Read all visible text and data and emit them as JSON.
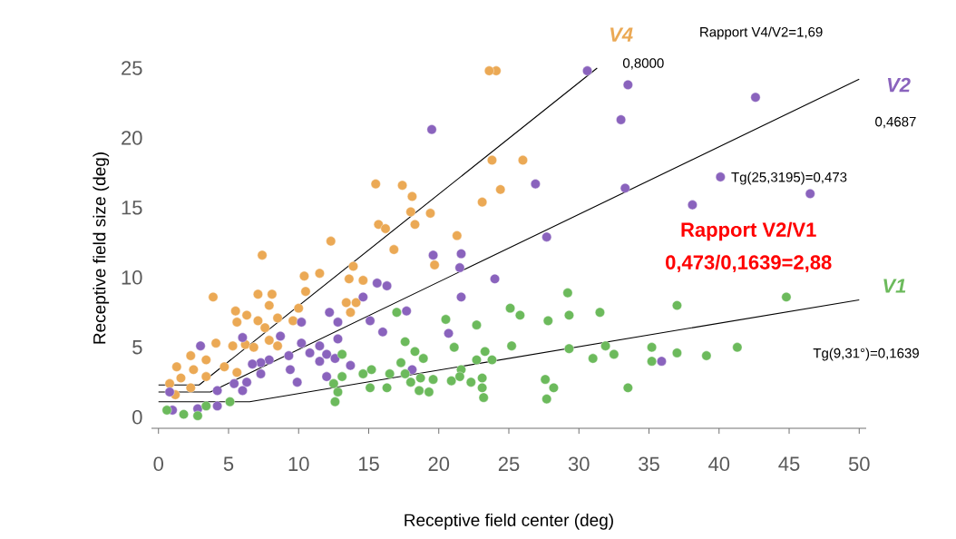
{
  "chart_data": {
    "type": "scatter",
    "xlabel": "Receptive field center (deg)",
    "ylabel": "Receptive field size (deg)",
    "xlim": [
      -0.5,
      50.5
    ],
    "ylim": [
      -0.8,
      25
    ],
    "xticks": [
      0,
      5,
      10,
      15,
      20,
      25,
      30,
      35,
      40,
      45,
      50
    ],
    "yticks": [
      0,
      5,
      10,
      15,
      20,
      25
    ],
    "series": [
      {
        "name": "V4",
        "color": "#eba955",
        "marker": "circle",
        "x": [
          15.5,
          17.4,
          18.1,
          18.0,
          15.7,
          16.2,
          18.3,
          12.3,
          16.8,
          7.4,
          13.9,
          10.4,
          11.5,
          13.6,
          14.6,
          7.1,
          8.1,
          3.9,
          10.5,
          13.4,
          14.1,
          7.9,
          5.5,
          6.3,
          5.6,
          7.1,
          8.5,
          9.6,
          10.0,
          13.7,
          7.6,
          4.1,
          5.3,
          6.2,
          6.8,
          8.5,
          7.9,
          2.3,
          3.4,
          1.3,
          2.5,
          4.7,
          5.6,
          1.6,
          3.4,
          0.8,
          2.3,
          1.2,
          24.1,
          23.6,
          23.8,
          26.0,
          24.4,
          23.1,
          19.4,
          21.3,
          19.7
        ],
        "values": [
          16.7,
          16.6,
          15.8,
          14.7,
          13.8,
          13.5,
          13.8,
          12.6,
          12.0,
          11.6,
          10.8,
          10.1,
          10.3,
          9.9,
          9.8,
          8.8,
          8.8,
          8.6,
          9.0,
          8.2,
          8.2,
          8.0,
          7.6,
          7.3,
          6.8,
          6.9,
          7.1,
          6.9,
          7.8,
          7.5,
          6.4,
          5.3,
          5.1,
          5.2,
          5.0,
          5.1,
          5.5,
          4.4,
          4.1,
          3.6,
          3.4,
          3.6,
          3.2,
          2.8,
          2.9,
          2.4,
          2.1,
          1.6,
          24.8,
          24.8,
          18.4,
          18.4,
          16.3,
          15.4,
          14.6,
          13.0,
          10.9
        ]
      },
      {
        "name": "V2",
        "color": "#8a63bd",
        "marker": "circle",
        "x": [
          15.6,
          16.3,
          14.6,
          12.2,
          12.8,
          15.1,
          16.0,
          17.7,
          10.2,
          8.7,
          6.0,
          3.0,
          12.8,
          10.2,
          11.5,
          12.0,
          10.8,
          9.3,
          7.9,
          7.3,
          6.7,
          12.6,
          11.5,
          9.4,
          7.3,
          6.3,
          9.9,
          13.7,
          12.0,
          5.4,
          6.0,
          4.2,
          4.2,
          2.8,
          1.0,
          0.8,
          18.1,
          30.6,
          33.5,
          33.0,
          19.5,
          26.9,
          33.3,
          27.7,
          21.6,
          19.6,
          21.5,
          24.0,
          21.6,
          20.7,
          35.9,
          42.6,
          40.1,
          38.1,
          46.5
        ],
        "values": [
          9.6,
          9.4,
          8.6,
          7.5,
          6.8,
          6.9,
          6.1,
          7.6,
          6.8,
          5.8,
          5.7,
          5.1,
          5.6,
          5.3,
          5.1,
          4.5,
          4.6,
          4.4,
          4.1,
          3.9,
          3.8,
          4.2,
          4.0,
          3.4,
          3.1,
          2.5,
          2.5,
          3.7,
          2.9,
          2.4,
          1.9,
          1.9,
          0.8,
          0.6,
          0.5,
          1.8,
          3.4,
          24.8,
          23.8,
          21.3,
          20.6,
          16.7,
          16.4,
          12.9,
          11.7,
          11.6,
          10.7,
          9.9,
          8.6,
          6.0,
          4.0,
          22.9,
          17.2,
          15.2,
          16.0
        ]
      },
      {
        "name": "V1",
        "color": "#6cba5c",
        "marker": "circle",
        "x": [
          17.0,
          17.6,
          18.3,
          13.1,
          15.2,
          14.6,
          16.5,
          17.3,
          13.1,
          12.5,
          12.8,
          12.6,
          15.1,
          16.3,
          5.1,
          3.4,
          1.8,
          2.8,
          0.6,
          18.0,
          29.2,
          25.1,
          25.8,
          29.3,
          31.5,
          20.5,
          27.8,
          22.7,
          21.1,
          25.2,
          29.3,
          31.9,
          35.2,
          23.3,
          31.0,
          32.5,
          35.2,
          18.9,
          22.7,
          23.8,
          17.6,
          18.7,
          19.6,
          21.6,
          20.9,
          21.5,
          22.3,
          23.1,
          18.6,
          19.3,
          23.1,
          23.2,
          27.6,
          28.2,
          27.7,
          33.5,
          44.8,
          37.0,
          37.0,
          39.1,
          41.3
        ],
        "values": [
          7.5,
          5.4,
          4.7,
          4.5,
          3.4,
          3.1,
          3.1,
          3.9,
          2.9,
          2.4,
          1.8,
          1.1,
          2.1,
          2.1,
          1.1,
          0.8,
          0.2,
          0.1,
          0.5,
          2.5,
          8.9,
          7.8,
          7.3,
          7.3,
          7.5,
          7.0,
          6.9,
          6.6,
          5.0,
          5.1,
          4.9,
          5.1,
          5.0,
          4.7,
          4.2,
          4.5,
          4.0,
          4.2,
          4.1,
          4.1,
          3.1,
          2.8,
          2.7,
          3.4,
          2.6,
          2.9,
          2.5,
          2.8,
          1.9,
          1.8,
          2.1,
          1.4,
          2.7,
          2.1,
          1.3,
          2.1,
          8.6,
          8.0,
          4.6,
          4.4,
          5.0
        ]
      },
      {
        "type": "line",
        "color": "#000000",
        "marker": "none",
        "x": [
          0,
          2.9,
          31.3
        ],
        "values": [
          2.3,
          2.3,
          25.0
        ]
      },
      {
        "type": "line",
        "color": "#000000",
        "marker": "none",
        "x": [
          0,
          3.7,
          50
        ],
        "values": [
          1.8,
          1.8,
          24.2
        ]
      },
      {
        "type": "line",
        "color": "#000000",
        "marker": "none",
        "x": [
          0,
          6.5,
          50
        ],
        "values": [
          1.1,
          1.1,
          8.4
        ]
      }
    ],
    "annotations": [
      "Rapport V4/V2=1,69",
      "0,8000",
      "0,4687",
      "Tg(25,3195)=0,473",
      "Rapport V2/V1",
      "0,473/0,1639=2,88",
      "Tg(9,31°)=0,1639"
    ]
  }
}
